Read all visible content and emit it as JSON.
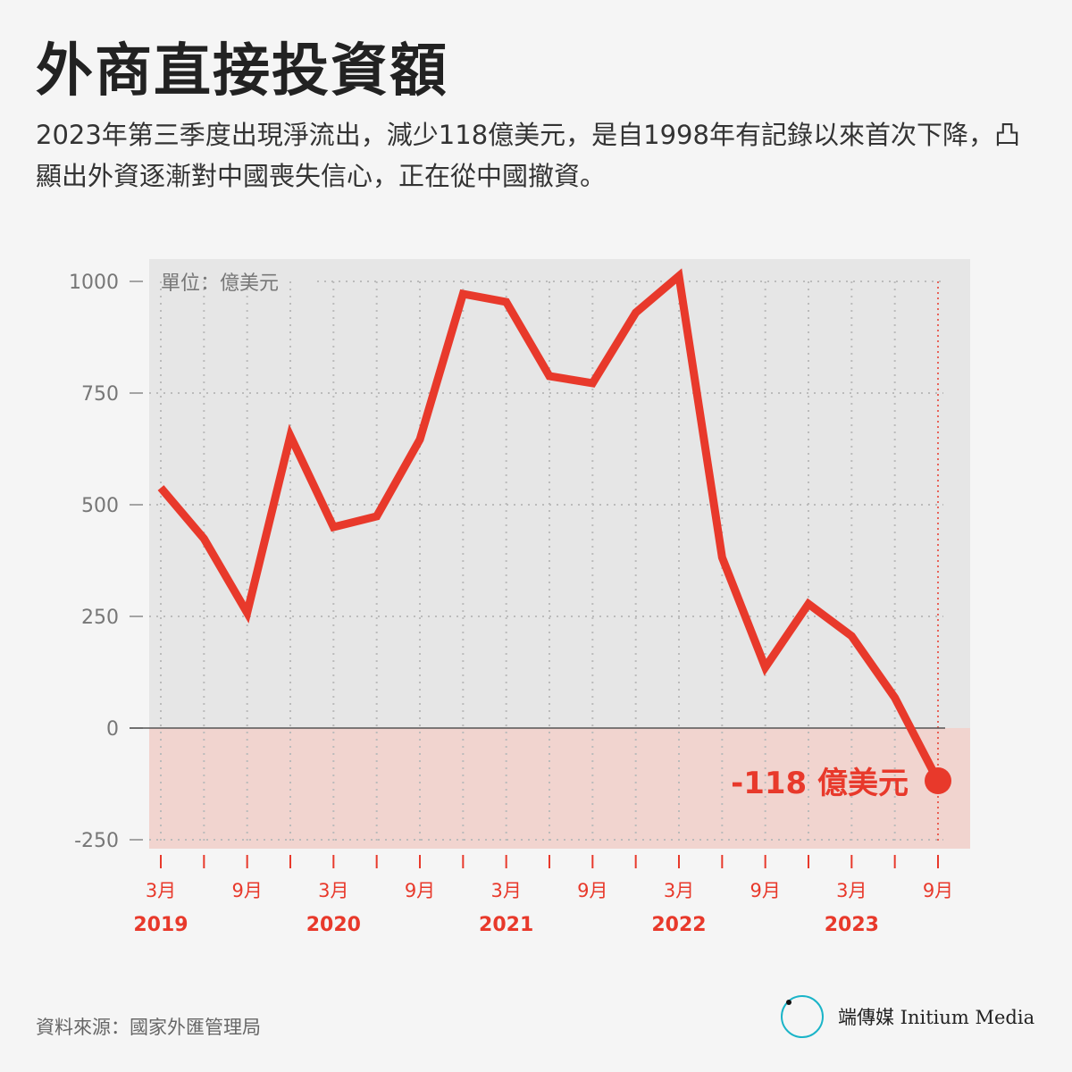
{
  "title": "外商直接投資額",
  "subtitle": "2023年第三季度出現淨流出，減少118億美元，是自1998年有記錄以來首次下降，凸顯出外資逐漸對中國喪失信心，正在從中國撤資。",
  "source": "資料來源：國家外匯管理局",
  "logo": {
    "mark": "端",
    "text": "端傳媒 Initium Media"
  },
  "colors": {
    "line": "#e8392b",
    "neg_bg": "#f1d4cf",
    "plot_bg": "#e6e6e6",
    "axis_label": "#e8392b"
  },
  "chart_data": {
    "type": "line",
    "unit_label": "單位：億美元",
    "x": [
      "2019Q1",
      "2019Q2",
      "2019Q3",
      "2019Q4",
      "2020Q1",
      "2020Q2",
      "2020Q3",
      "2020Q4",
      "2021Q1",
      "2021Q2",
      "2021Q3",
      "2021Q4",
      "2022Q1",
      "2022Q2",
      "2022Q3",
      "2022Q4",
      "2023Q1",
      "2023Q2",
      "2023Q3"
    ],
    "values": [
      538,
      424,
      258,
      654,
      450,
      474,
      646,
      972,
      954,
      788,
      772,
      930,
      1012,
      382,
      136,
      278,
      206,
      68,
      -118
    ],
    "ylim": [
      -270,
      1050
    ],
    "yticks": [
      1000,
      750,
      500,
      250,
      0,
      -250
    ],
    "month_labels": [
      "3月",
      "",
      "9月",
      "",
      "3月",
      "",
      "9月",
      "",
      "3月",
      "",
      "9月",
      "",
      "3月",
      "",
      "9月",
      "",
      "3月",
      "",
      "9月"
    ],
    "year_labels": [
      "2019",
      "",
      "",
      "",
      "2020",
      "",
      "",
      "",
      "2021",
      "",
      "",
      "",
      "2022",
      "",
      "",
      "",
      "2023",
      "",
      ""
    ],
    "annotation": "-118 億美元"
  }
}
